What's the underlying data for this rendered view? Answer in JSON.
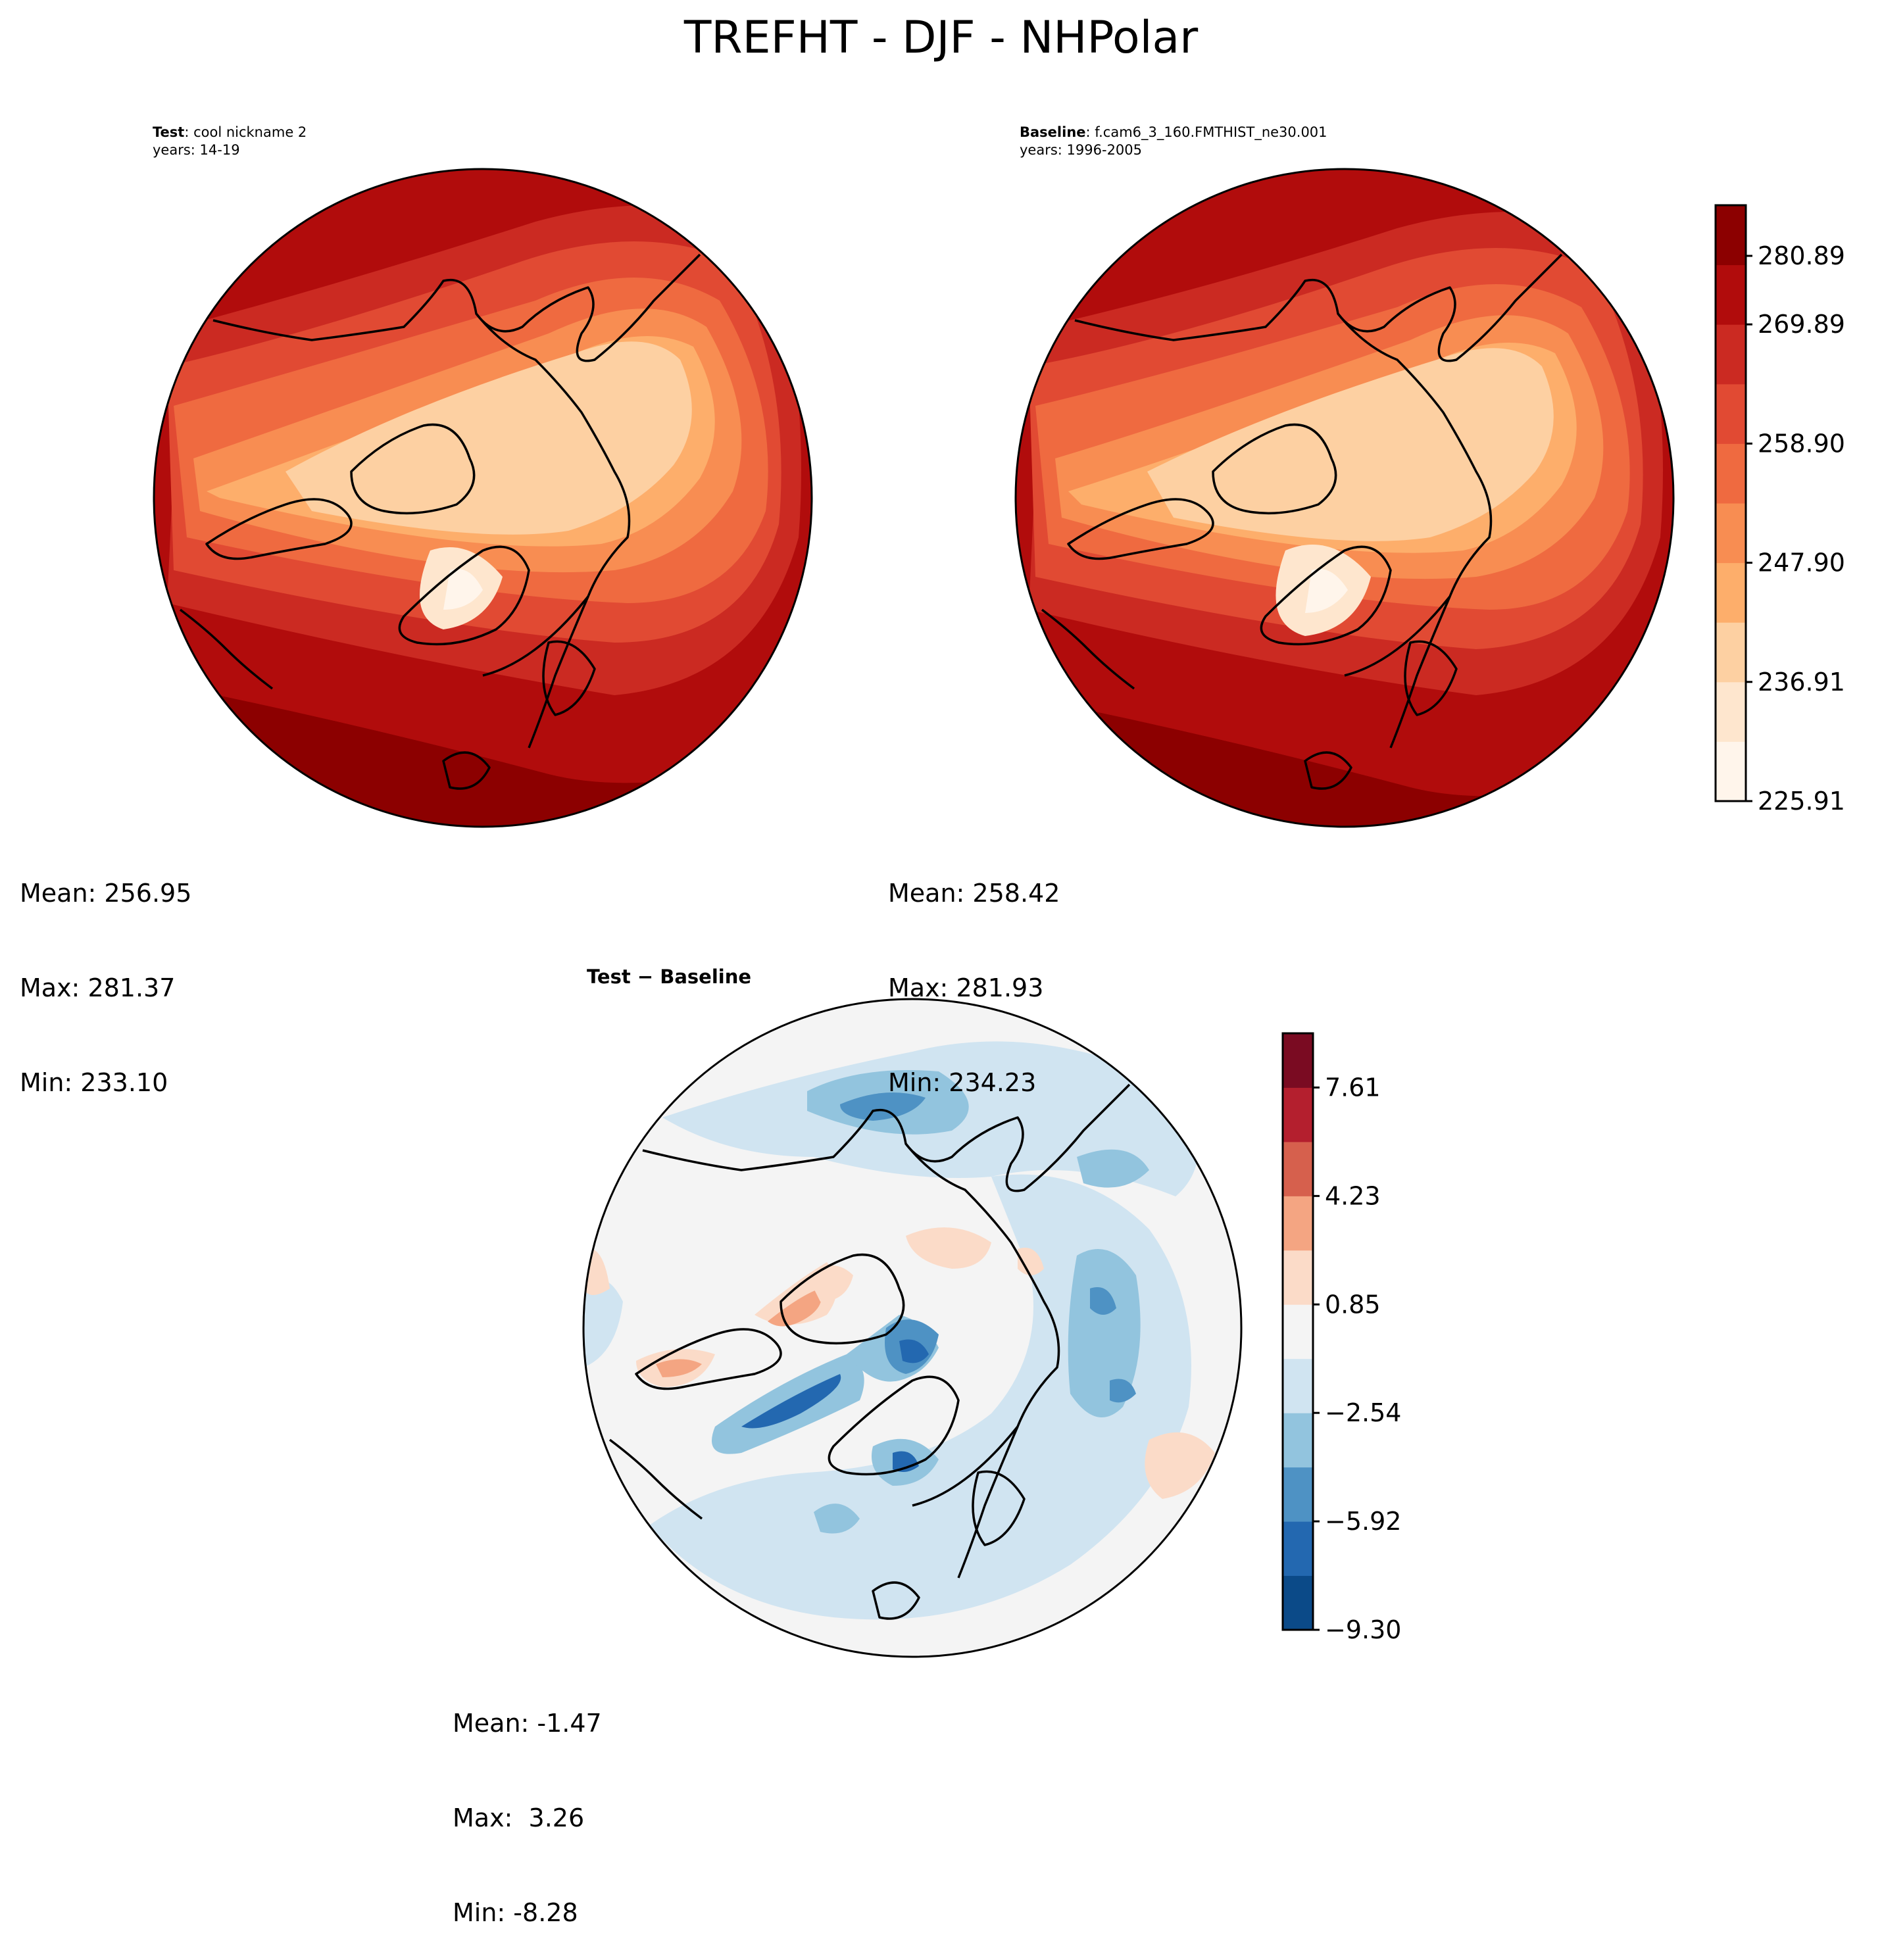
{
  "title": "TREFHT - DJF - NHPolar",
  "panels": {
    "test": {
      "header_bold": "Test",
      "header_text": ": cool nickname 2",
      "years": "years: 14-19",
      "stats": {
        "mean": "Mean: 256.95",
        "max": "Max: 281.37",
        "min": "Min: 233.10"
      }
    },
    "baseline": {
      "header_bold": "Baseline",
      "header_text": ": f.cam6_3_160.FMTHIST_ne30.001",
      "years": "years: 1996-2005",
      "stats": {
        "mean": "Mean: 258.42",
        "max": "Max: 281.93",
        "min": "Min: 234.23"
      }
    },
    "diff": {
      "title": "Test − Baseline",
      "stats": {
        "mean": "Mean: -1.47",
        "max": "Max:  3.26",
        "min": "Min: -8.28"
      }
    }
  },
  "colors": {
    "reds": [
      "#fff5eb",
      "#fee6ce",
      "#fdd0a2",
      "#fdae6b",
      "#f88d52",
      "#ef6a40",
      "#e14a33",
      "#cb2a22",
      "#b10c0c",
      "#8c0000"
    ],
    "rdbu": [
      "#0b4a88",
      "#2368b0",
      "#4e92c4",
      "#92c4de",
      "#d0e4f1",
      "#f4f4f4",
      "#fbdbc8",
      "#f4a582",
      "#d6604d",
      "#b41f2e",
      "#7a0b22"
    ]
  },
  "chart_data": [
    {
      "type": "heatmap",
      "name": "Test",
      "projection": "North Polar Stereographic",
      "variable": "TREFHT",
      "mean": 256.95,
      "max": 281.37,
      "min": 233.1
    },
    {
      "type": "heatmap",
      "name": "Baseline",
      "projection": "North Polar Stereographic",
      "variable": "TREFHT",
      "mean": 258.42,
      "max": 281.93,
      "min": 234.23,
      "colorbar": {
        "ticks": [
          "280.89",
          "269.89",
          "258.90",
          "247.90",
          "236.91",
          "225.91"
        ],
        "range": [
          225.91,
          286.4
        ],
        "levels": 10
      }
    },
    {
      "type": "heatmap",
      "name": "Test − Baseline",
      "projection": "North Polar Stereographic",
      "mean": -1.47,
      "max": 3.26,
      "min": -8.28,
      "colorbar": {
        "ticks": [
          "7.61",
          "4.23",
          "0.85",
          "−2.54",
          "−5.92",
          "−9.30"
        ],
        "range": [
          -9.3,
          9.3
        ],
        "levels": 11
      }
    }
  ]
}
